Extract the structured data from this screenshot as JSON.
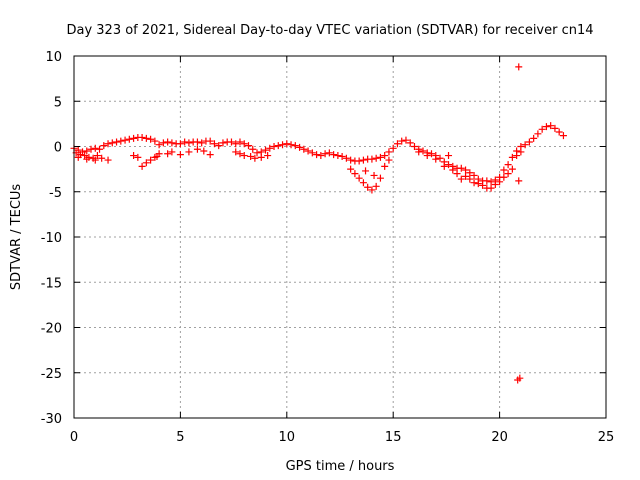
{
  "chart_data": {
    "type": "scatter",
    "title": "Day 323 of 2021, Sidereal Day-to-day VTEC variation (SDTVAR) for receiver cn14",
    "xlabel": "GPS time / hours",
    "ylabel": "SDTVAR / TECUs",
    "xlim": [
      0,
      25
    ],
    "ylim": [
      -30,
      10
    ],
    "xticks": [
      0,
      5,
      10,
      15,
      20,
      25
    ],
    "yticks": [
      -30,
      -25,
      -20,
      -15,
      -10,
      -5,
      0,
      5,
      10
    ],
    "xtick_labels": [
      "0",
      "5",
      "10",
      "15",
      "20",
      "25"
    ],
    "ytick_labels": [
      "-30",
      "-25",
      "-20",
      "-15",
      "-10",
      "-5",
      "0",
      "5",
      "10"
    ],
    "grid": true,
    "marker": "+",
    "series_color": "#ff0000",
    "series": [
      {
        "name": "SDTVAR",
        "points": [
          [
            0.0,
            -0.2
          ],
          [
            0.2,
            -0.4
          ],
          [
            0.4,
            -0.6
          ],
          [
            0.6,
            -0.5
          ],
          [
            0.8,
            -0.3
          ],
          [
            1.0,
            -0.2
          ],
          [
            1.2,
            -0.3
          ],
          [
            1.4,
            0.1
          ],
          [
            1.6,
            0.3
          ],
          [
            1.8,
            0.4
          ],
          [
            2.0,
            0.5
          ],
          [
            2.2,
            0.6
          ],
          [
            2.4,
            0.7
          ],
          [
            2.6,
            0.8
          ],
          [
            2.8,
            0.9
          ],
          [
            3.0,
            1.0
          ],
          [
            3.2,
            1.0
          ],
          [
            3.4,
            0.9
          ],
          [
            3.6,
            0.8
          ],
          [
            3.8,
            0.6
          ],
          [
            4.0,
            0.2
          ],
          [
            4.2,
            0.4
          ],
          [
            4.4,
            0.5
          ],
          [
            4.6,
            0.4
          ],
          [
            4.8,
            0.3
          ],
          [
            5.0,
            0.3
          ],
          [
            5.2,
            0.5
          ],
          [
            5.4,
            0.4
          ],
          [
            5.6,
            0.5
          ],
          [
            5.8,
            0.5
          ],
          [
            6.0,
            0.4
          ],
          [
            6.2,
            0.6
          ],
          [
            6.4,
            0.6
          ],
          [
            6.6,
            0.3
          ],
          [
            6.8,
            0.1
          ],
          [
            7.0,
            0.4
          ],
          [
            7.2,
            0.5
          ],
          [
            7.4,
            0.5
          ],
          [
            7.6,
            0.3
          ],
          [
            7.8,
            0.5
          ],
          [
            8.0,
            0.3
          ],
          [
            8.2,
            0.1
          ],
          [
            8.4,
            -0.3
          ],
          [
            8.6,
            -0.7
          ],
          [
            8.8,
            -0.6
          ],
          [
            9.0,
            -0.4
          ],
          [
            9.2,
            -0.2
          ],
          [
            9.4,
            0.0
          ],
          [
            9.6,
            0.1
          ],
          [
            9.8,
            0.2
          ],
          [
            10.0,
            0.3
          ],
          [
            10.2,
            0.2
          ],
          [
            10.4,
            0.1
          ],
          [
            10.6,
            -0.1
          ],
          [
            10.8,
            -0.3
          ],
          [
            11.0,
            -0.5
          ],
          [
            11.2,
            -0.7
          ],
          [
            11.4,
            -0.9
          ],
          [
            11.6,
            -1.0
          ],
          [
            11.8,
            -0.8
          ],
          [
            12.0,
            -0.7
          ],
          [
            12.2,
            -0.9
          ],
          [
            12.4,
            -1.0
          ],
          [
            12.6,
            -1.1
          ],
          [
            12.8,
            -1.3
          ],
          [
            13.0,
            -1.5
          ],
          [
            13.2,
            -1.6
          ],
          [
            13.4,
            -1.6
          ],
          [
            13.6,
            -1.5
          ],
          [
            13.8,
            -1.4
          ],
          [
            14.0,
            -1.4
          ],
          [
            14.2,
            -1.3
          ],
          [
            14.4,
            -1.2
          ],
          [
            14.6,
            -1.0
          ],
          [
            14.8,
            -0.6
          ],
          [
            15.0,
            -0.2
          ],
          [
            15.2,
            0.3
          ],
          [
            15.4,
            0.6
          ],
          [
            15.6,
            0.7
          ],
          [
            15.8,
            0.4
          ],
          [
            16.0,
            0.0
          ],
          [
            16.2,
            -0.3
          ],
          [
            16.4,
            -0.5
          ],
          [
            16.6,
            -0.7
          ],
          [
            16.8,
            -0.8
          ],
          [
            17.0,
            -1.0
          ],
          [
            17.2,
            -1.3
          ],
          [
            17.4,
            -1.7
          ],
          [
            17.6,
            -2.0
          ],
          [
            17.8,
            -2.2
          ],
          [
            18.0,
            -2.4
          ],
          [
            18.2,
            -2.4
          ],
          [
            18.4,
            -2.6
          ],
          [
            18.6,
            -2.9
          ],
          [
            18.8,
            -3.2
          ],
          [
            19.0,
            -3.6
          ],
          [
            19.2,
            -3.8
          ],
          [
            19.4,
            -3.8
          ],
          [
            19.6,
            -3.9
          ],
          [
            19.8,
            -3.7
          ],
          [
            20.0,
            -3.4
          ],
          [
            20.2,
            -2.6
          ],
          [
            20.4,
            -2.0
          ],
          [
            20.6,
            -1.2
          ],
          [
            20.8,
            -0.5
          ],
          [
            21.0,
            0.0
          ],
          [
            21.2,
            0.2
          ],
          [
            21.4,
            0.5
          ],
          [
            21.6,
            0.9
          ],
          [
            21.8,
            1.4
          ],
          [
            22.0,
            1.9
          ],
          [
            22.2,
            2.2
          ],
          [
            22.4,
            2.3
          ],
          [
            22.6,
            2.0
          ],
          [
            22.8,
            1.6
          ],
          [
            23.0,
            1.2
          ],
          [
            0.1,
            -0.7
          ],
          [
            0.3,
            -0.9
          ],
          [
            0.5,
            -1.0
          ],
          [
            0.7,
            -1.2
          ],
          [
            0.9,
            -1.3
          ],
          [
            1.1,
            -1.0
          ],
          [
            1.3,
            -1.3
          ],
          [
            1.6,
            -1.5
          ],
          [
            0.2,
            -1.2
          ],
          [
            0.6,
            -1.4
          ],
          [
            1.0,
            -1.5
          ],
          [
            2.8,
            -1.0
          ],
          [
            3.0,
            -1.2
          ],
          [
            3.2,
            -2.2
          ],
          [
            3.4,
            -1.8
          ],
          [
            3.6,
            -1.5
          ],
          [
            3.8,
            -1.2
          ],
          [
            4.0,
            -0.8
          ],
          [
            3.9,
            -1.1
          ],
          [
            4.4,
            -0.8
          ],
          [
            4.6,
            -0.6
          ],
          [
            5.0,
            -0.9
          ],
          [
            5.4,
            -0.6
          ],
          [
            5.8,
            -0.3
          ],
          [
            6.4,
            -0.9
          ],
          [
            6.1,
            -0.5
          ],
          [
            7.6,
            -0.6
          ],
          [
            7.8,
            -0.8
          ],
          [
            8.0,
            -1.0
          ],
          [
            8.3,
            -1.1
          ],
          [
            8.5,
            -1.3
          ],
          [
            8.8,
            -1.2
          ],
          [
            9.1,
            -1.0
          ],
          [
            13.0,
            -2.5
          ],
          [
            13.2,
            -3.0
          ],
          [
            13.4,
            -3.5
          ],
          [
            13.6,
            -4.0
          ],
          [
            13.8,
            -4.5
          ],
          [
            14.0,
            -4.8
          ],
          [
            14.2,
            -4.4
          ],
          [
            14.4,
            -3.5
          ],
          [
            14.6,
            -2.2
          ],
          [
            14.8,
            -1.5
          ],
          [
            13.7,
            -2.7
          ],
          [
            14.1,
            -3.2
          ],
          [
            16.2,
            -0.6
          ],
          [
            16.6,
            -1.0
          ],
          [
            17.0,
            -1.4
          ],
          [
            17.4,
            -2.2
          ],
          [
            17.8,
            -2.6
          ],
          [
            18.0,
            -3.0
          ],
          [
            18.4,
            -3.3
          ],
          [
            18.2,
            -3.6
          ],
          [
            17.6,
            -1.0
          ],
          [
            18.6,
            -3.6
          ],
          [
            18.8,
            -4.0
          ],
          [
            19.0,
            -4.1
          ],
          [
            19.2,
            -4.3
          ],
          [
            19.4,
            -4.6
          ],
          [
            19.6,
            -4.6
          ],
          [
            19.8,
            -4.2
          ],
          [
            20.0,
            -3.9
          ],
          [
            20.2,
            -3.4
          ],
          [
            20.4,
            -3.0
          ],
          [
            20.6,
            -2.5
          ],
          [
            20.8,
            -1.0
          ],
          [
            21.0,
            -0.6
          ],
          [
            20.9,
            -3.8
          ],
          [
            20.9,
            8.8
          ],
          [
            20.85,
            -25.8
          ],
          [
            20.95,
            -25.6
          ]
        ]
      }
    ]
  }
}
